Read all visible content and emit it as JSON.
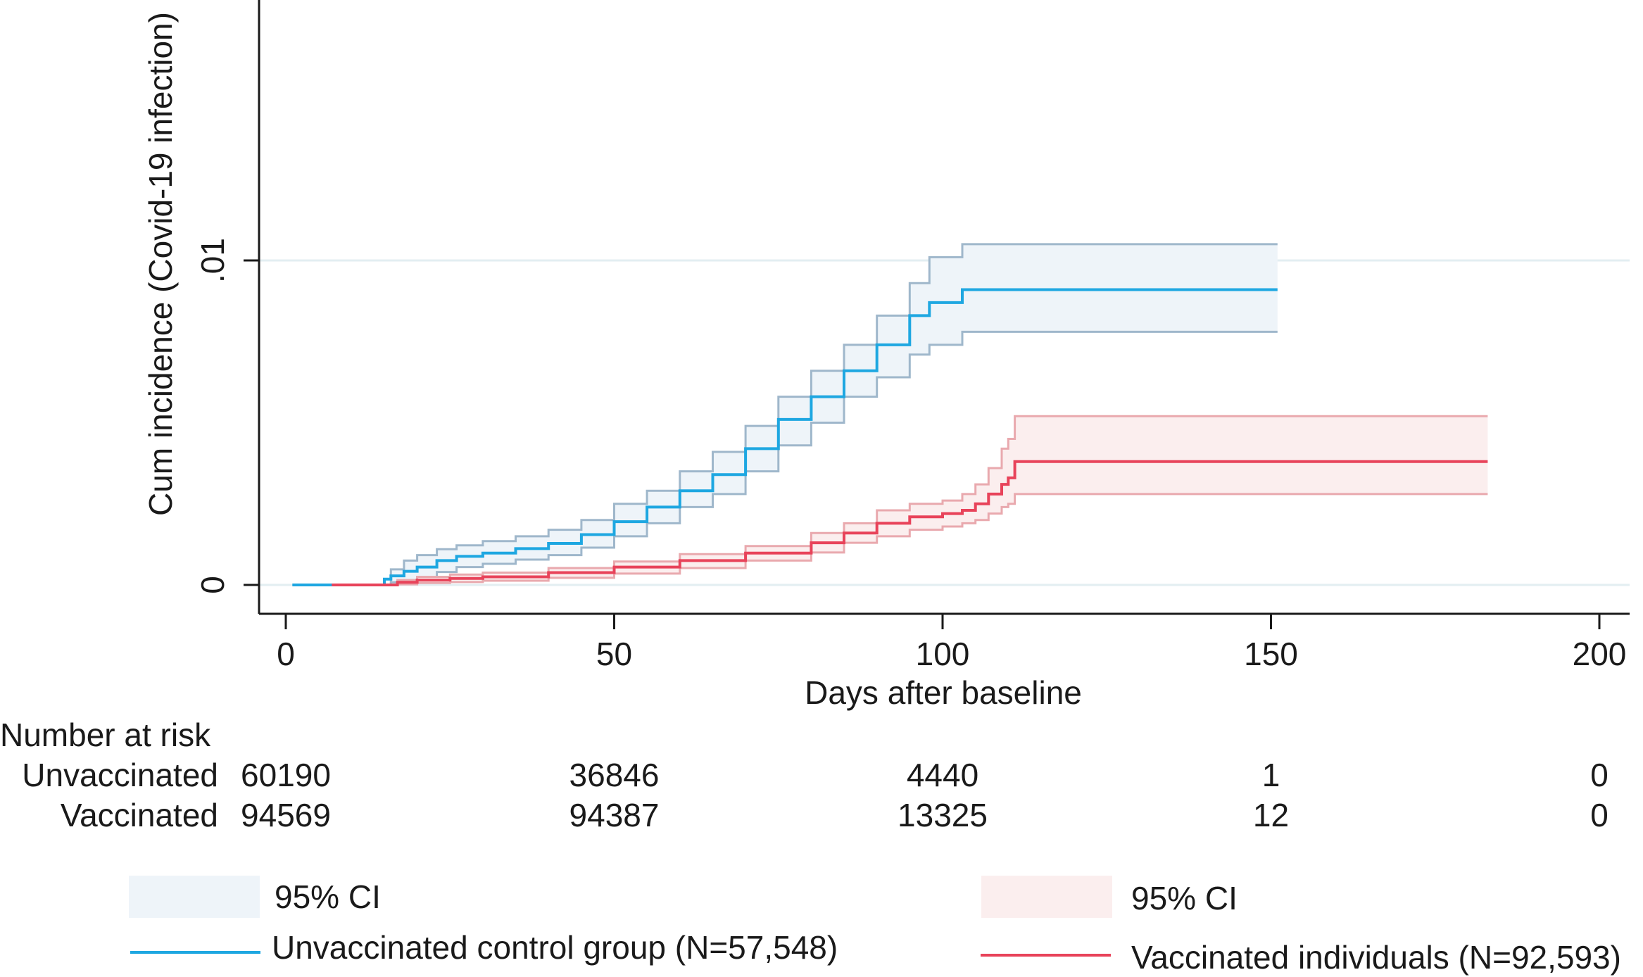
{
  "chart_data": {
    "type": "line",
    "xlabel": "Days after baseline",
    "ylabel": "Cum incidence (Covid-19 infection)",
    "xlim": [
      -4,
      204
    ],
    "ylim": [
      0,
      0.0198
    ],
    "x_ticks": [
      0,
      50,
      100,
      150,
      200
    ],
    "x_tick_labels": [
      "0",
      "50",
      "100",
      "150",
      "200"
    ],
    "y_ticks": [
      0,
      0.01
    ],
    "y_tick_labels": [
      "0",
      ".01"
    ],
    "grid": "horizontal",
    "series": [
      {
        "name": "Unvaccinated control group (N=57,548)",
        "color": "#1ea7e1",
        "ci_fill": "#eef4f9",
        "ci_stroke": "#9fb7cb",
        "points": [
          [
            1,
            0
          ],
          [
            14,
            0
          ],
          [
            15,
            0.00018
          ],
          [
            16,
            0.00028
          ],
          [
            18,
            0.00042
          ],
          [
            20,
            0.00055
          ],
          [
            23,
            0.00075
          ],
          [
            26,
            0.00088
          ],
          [
            30,
            0.00098
          ],
          [
            35,
            0.00112
          ],
          [
            40,
            0.00128
          ],
          [
            45,
            0.00155
          ],
          [
            50,
            0.00195
          ],
          [
            55,
            0.0024
          ],
          [
            60,
            0.0029
          ],
          [
            65,
            0.0034
          ],
          [
            70,
            0.0042
          ],
          [
            75,
            0.0051
          ],
          [
            80,
            0.0058
          ],
          [
            85,
            0.0066
          ],
          [
            90,
            0.0074
          ],
          [
            95,
            0.0083
          ],
          [
            98,
            0.0087
          ],
          [
            103,
            0.0091
          ],
          [
            151,
            0.0091
          ]
        ],
        "upper": [
          [
            15,
            0
          ],
          [
            16,
            0.00048
          ],
          [
            18,
            0.00075
          ],
          [
            20,
            0.00092
          ],
          [
            23,
            0.0011
          ],
          [
            26,
            0.00122
          ],
          [
            30,
            0.00135
          ],
          [
            35,
            0.0015
          ],
          [
            40,
            0.0017
          ],
          [
            45,
            0.002
          ],
          [
            50,
            0.0025
          ],
          [
            55,
            0.0029
          ],
          [
            60,
            0.0035
          ],
          [
            65,
            0.0041
          ],
          [
            70,
            0.0049
          ],
          [
            75,
            0.0058
          ],
          [
            80,
            0.0066
          ],
          [
            85,
            0.0074
          ],
          [
            90,
            0.0083
          ],
          [
            95,
            0.0093
          ],
          [
            98,
            0.0101
          ],
          [
            103,
            0.0105
          ],
          [
            151,
            0.0105
          ]
        ],
        "lower": [
          [
            15,
            0
          ],
          [
            16,
            8e-05
          ],
          [
            18,
            0.00015
          ],
          [
            20,
            0.00025
          ],
          [
            23,
            0.0004
          ],
          [
            26,
            0.00055
          ],
          [
            30,
            0.00065
          ],
          [
            35,
            0.00078
          ],
          [
            40,
            0.00092
          ],
          [
            45,
            0.00115
          ],
          [
            50,
            0.0015
          ],
          [
            55,
            0.0019
          ],
          [
            60,
            0.0024
          ],
          [
            65,
            0.0028
          ],
          [
            70,
            0.0035
          ],
          [
            75,
            0.0043
          ],
          [
            80,
            0.005
          ],
          [
            85,
            0.0058
          ],
          [
            90,
            0.0064
          ],
          [
            95,
            0.0071
          ],
          [
            98,
            0.0074
          ],
          [
            103,
            0.0078
          ],
          [
            151,
            0.0078
          ]
        ]
      },
      {
        "name": "Vaccinated individuals (N=92,593)",
        "color": "#e8435a",
        "ci_fill": "#fbeeee",
        "ci_stroke": "#e9a9ae",
        "points": [
          [
            7,
            0
          ],
          [
            15,
            0
          ],
          [
            17,
            8e-05
          ],
          [
            20,
            0.00015
          ],
          [
            25,
            0.0002
          ],
          [
            30,
            0.00025
          ],
          [
            40,
            0.00038
          ],
          [
            50,
            0.00055
          ],
          [
            60,
            0.00075
          ],
          [
            70,
            0.00098
          ],
          [
            80,
            0.0013
          ],
          [
            85,
            0.0016
          ],
          [
            90,
            0.0019
          ],
          [
            95,
            0.0021
          ],
          [
            100,
            0.0022
          ],
          [
            103,
            0.0023
          ],
          [
            105,
            0.0025
          ],
          [
            107,
            0.0028
          ],
          [
            109,
            0.0031
          ],
          [
            110,
            0.0033
          ],
          [
            111,
            0.0038
          ],
          [
            183,
            0.0038
          ]
        ],
        "upper": [
          [
            15,
            0
          ],
          [
            17,
            0.00015
          ],
          [
            20,
            0.00025
          ],
          [
            25,
            0.00032
          ],
          [
            30,
            0.00038
          ],
          [
            40,
            0.00052
          ],
          [
            50,
            0.00072
          ],
          [
            60,
            0.00095
          ],
          [
            70,
            0.0012
          ],
          [
            80,
            0.0016
          ],
          [
            85,
            0.0019
          ],
          [
            90,
            0.0023
          ],
          [
            95,
            0.0025
          ],
          [
            100,
            0.0026
          ],
          [
            103,
            0.0028
          ],
          [
            105,
            0.0031
          ],
          [
            107,
            0.0036
          ],
          [
            109,
            0.0042
          ],
          [
            110,
            0.0045
          ],
          [
            111,
            0.0052
          ],
          [
            183,
            0.0052
          ]
        ],
        "lower": [
          [
            15,
            0
          ],
          [
            17,
            2e-05
          ],
          [
            20,
            6e-05
          ],
          [
            25,
            9e-05
          ],
          [
            30,
            0.00013
          ],
          [
            40,
            0.00022
          ],
          [
            50,
            0.00035
          ],
          [
            60,
            0.00052
          ],
          [
            70,
            0.00075
          ],
          [
            80,
            0.001
          ],
          [
            85,
            0.0013
          ],
          [
            90,
            0.0015
          ],
          [
            95,
            0.0017
          ],
          [
            100,
            0.0018
          ],
          [
            103,
            0.0019
          ],
          [
            105,
            0.002
          ],
          [
            107,
            0.0022
          ],
          [
            109,
            0.0024
          ],
          [
            110,
            0.0025
          ],
          [
            111,
            0.0028
          ],
          [
            183,
            0.0028
          ]
        ]
      }
    ]
  },
  "risk_table": {
    "title": "Number at risk",
    "rows": [
      {
        "label": "Unvaccinated",
        "values": [
          "60190",
          "36846",
          "4440",
          "1",
          "0"
        ]
      },
      {
        "label": "Vaccinated",
        "values": [
          "94569",
          "94387",
          "13325",
          "12",
          "0"
        ]
      }
    ]
  },
  "legend": {
    "unvaccinated_ci_label": "95% CI",
    "unvaccinated_line_label": "Unvaccinated control group (N=57,548)",
    "vaccinated_ci_label": "95% CI",
    "vaccinated_line_label": "Vaccinated individuals (N=92,593)"
  }
}
